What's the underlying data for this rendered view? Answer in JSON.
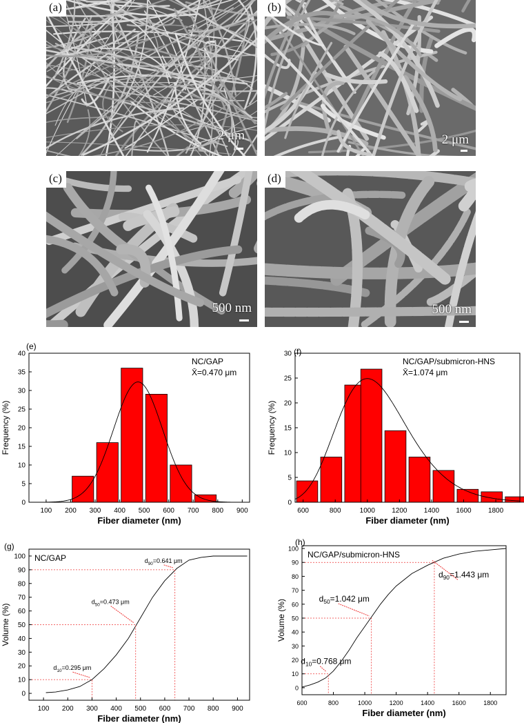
{
  "micrographs": [
    {
      "label": "(a)",
      "scale": "2 μm"
    },
    {
      "label": "(b)",
      "scale": "2 μm"
    },
    {
      "label": "(c)",
      "scale": "500 nm"
    },
    {
      "label": "(d)",
      "scale": "500 nm"
    }
  ],
  "chart_data": [
    {
      "panel": "(e)",
      "type": "bar",
      "legend": "NC/GAP",
      "mean_label": "X̄=0.470 μm",
      "xlabel": "Fiber diameter (nm)",
      "ylabel": "Frequency (%)",
      "xlim": [
        30,
        930
      ],
      "ylim": [
        0,
        40
      ],
      "xticks": [
        100,
        200,
        300,
        400,
        500,
        600,
        700,
        800,
        900
      ],
      "yticks": [
        0,
        5,
        10,
        15,
        20,
        25,
        30,
        35,
        40
      ],
      "bin_width": 100,
      "bins": [
        250,
        350,
        450,
        550,
        650,
        750
      ],
      "values": [
        7,
        16,
        36,
        29,
        10,
        2
      ],
      "fit": {
        "type": "normal",
        "mean": 475,
        "sd": 100,
        "peak": 32.3
      },
      "bar_color": "#ff0000"
    },
    {
      "panel": "(f)",
      "type": "bar",
      "legend": "NC/GAP/submicron-HNS",
      "mean_label": "X̄=1.074 μm",
      "xlabel": "Fiber diameter (nm)",
      "ylabel": "Frequency (%)",
      "xlim": [
        550,
        1950
      ],
      "ylim": [
        0,
        30
      ],
      "xticks": [
        600,
        800,
        1000,
        1200,
        1400,
        1600,
        1800
      ],
      "yticks": [
        0,
        5,
        10,
        15,
        20,
        25,
        30
      ],
      "bin_width": 150,
      "bins": [
        625,
        775,
        925,
        1025,
        1175,
        1325,
        1475,
        1625,
        1775,
        1925
      ],
      "values": [
        4.3,
        9.1,
        23.6,
        26.8,
        14.4,
        9.1,
        6.4,
        2.6,
        2.1,
        1.1
      ],
      "fit": {
        "type": "lognormal",
        "mean": 1074,
        "peak": 24.9,
        "mode": 1000
      },
      "bar_color": "#ff0000"
    },
    {
      "panel": "(g)",
      "type": "line",
      "legend": "NC/GAP",
      "xlabel": "Fiber diameter (nm)",
      "ylabel": "Volume (%)",
      "xlim": [
        40,
        950
      ],
      "ylim": [
        -5,
        105
      ],
      "xticks": [
        100,
        200,
        300,
        400,
        500,
        600,
        700,
        800,
        900
      ],
      "yticks": [
        0,
        10,
        20,
        30,
        40,
        50,
        60,
        70,
        80,
        90,
        100
      ],
      "x": [
        110,
        150,
        200,
        250,
        300,
        350,
        400,
        450,
        500,
        550,
        600,
        650,
        700,
        750,
        800,
        850,
        900,
        940
      ],
      "y": [
        0.5,
        1,
        2.5,
        5,
        10,
        18,
        28,
        40,
        55,
        70,
        82,
        91,
        97,
        99,
        100,
        100,
        100,
        100
      ],
      "annotations": [
        {
          "prefix": "d",
          "sub": "10",
          "text": "=0.295 μm",
          "x": 300,
          "y": 10
        },
        {
          "prefix": "d",
          "sub": "50",
          "text": "=0.473 μm",
          "x": 480,
          "y": 50
        },
        {
          "prefix": "d",
          "sub": "90",
          "text": "=0.641 μm",
          "x": 642,
          "y": 90
        }
      ]
    },
    {
      "panel": "(h)",
      "type": "line",
      "legend": "NC/GAP/submicron-HNS",
      "xlabel": "Fiber diameter (nm)",
      "ylabel": "Volume (%)",
      "xlim": [
        600,
        1900
      ],
      "ylim": [
        -5,
        102
      ],
      "xticks": [
        600,
        800,
        1000,
        1200,
        1400,
        1600,
        1800
      ],
      "yticks": [
        0,
        10,
        20,
        30,
        40,
        50,
        60,
        70,
        80,
        90,
        100
      ],
      "x": [
        600,
        650,
        700,
        750,
        800,
        850,
        900,
        950,
        1000,
        1050,
        1100,
        1150,
        1200,
        1300,
        1400,
        1500,
        1600,
        1700,
        1800,
        1900
      ],
      "y": [
        0.5,
        2,
        4,
        7,
        12,
        19,
        27,
        36,
        44,
        52,
        60,
        67,
        73,
        82,
        88,
        93,
        96,
        98,
        99,
        100
      ],
      "annotations": [
        {
          "prefix": "d",
          "sub": "10",
          "text": "=0.768 μm",
          "x": 768,
          "y": 10
        },
        {
          "prefix": "d",
          "sub": "50",
          "text": "=1.042 μm",
          "x": 1042,
          "y": 50
        },
        {
          "prefix": "d",
          "sub": "90",
          "text": "=1.443 μm",
          "x": 1443,
          "y": 90
        }
      ]
    }
  ]
}
